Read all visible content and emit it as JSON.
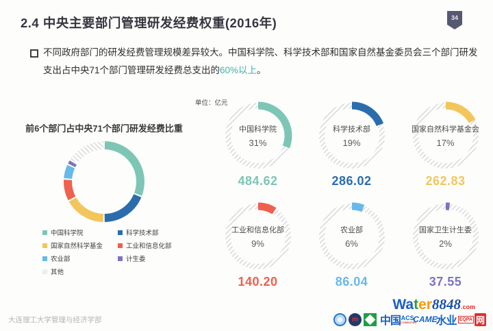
{
  "header": {
    "title": "2.4  中央主要部门管理研发经费权重(2016年)",
    "page_number": "34"
  },
  "intro": {
    "text": "不同政府部门的研发经费管理规模差异较大。中国科学院、科学技术部和国家自然基金委员会三个部门研发支出占中央71个部门管理研发经费总支出的",
    "highlight": "60%以上",
    "tail": "。"
  },
  "theme": {
    "highlight_color": "#3fb3a9",
    "badge_color": "#565871"
  },
  "chart_data": [
    {
      "type": "pie",
      "donut": true,
      "title": "前6个部门占中央71个部门研发经费比重",
      "start_angle": "top",
      "direction": "clockwise",
      "categories": [
        "中国科学院",
        "科学技术部",
        "国家自然科学基金",
        "工业和信息化部",
        "农业部",
        "计生委",
        "其他"
      ],
      "values": [
        31,
        19,
        17,
        9,
        6,
        2,
        16
      ],
      "unit": "%",
      "colors": [
        "#7dc6b6",
        "#2a6dad",
        "#f2c65b",
        "#ef604e",
        "#66b9e8",
        "#7a73c3",
        "hatch"
      ],
      "legend_position": "bottom"
    },
    {
      "type": "pie",
      "subtype": "donut-gauge-grid",
      "unit_label": "单位：亿元",
      "items": [
        {
          "name": "中国科学院",
          "percent": 31,
          "percent_label": "31%",
          "value": "484.62",
          "color": "#7dc6b6"
        },
        {
          "name": "科学技术部",
          "percent": 19,
          "percent_label": "19%",
          "value": "286.02",
          "color": "#2a6dad"
        },
        {
          "name": "国家自然科学基金会",
          "percent": 17,
          "percent_label": "17%",
          "value": "262.83",
          "color": "#f2c65b"
        },
        {
          "name": "工业和信息化部",
          "percent": 9,
          "percent_label": "9%",
          "value": "140.20",
          "color": "#ef604e"
        },
        {
          "name": "农业部",
          "percent": 6,
          "percent_label": "6%",
          "value": "86.04",
          "color": "#66b9e8"
        },
        {
          "name": "国家卫生计生委",
          "percent": 2,
          "percent_label": "2%",
          "value": "37.55",
          "color": "#7a73c4"
        }
      ]
    }
  ],
  "legend": {
    "items": [
      {
        "label": "中国科学院",
        "color": "#7dc6b6"
      },
      {
        "label": "国家自然科学基金",
        "color": "#f2c65b"
      },
      {
        "label": "农业部",
        "color": "#66b9e8"
      },
      {
        "label": "其他",
        "color": "hatch"
      },
      {
        "label": "科学技术部",
        "color": "#2a6dad"
      },
      {
        "label": "工业和信息化部",
        "color": "#ef604e"
      },
      {
        "label": "计生委",
        "color": "#7a73c3"
      }
    ]
  },
  "footer": {
    "text": "大连理工大学管理与经济学部"
  },
  "watermark": {
    "brand_letters": [
      {
        "ch": "W",
        "color": "#1a5fc8"
      },
      {
        "ch": "a",
        "color": "#1a5fc8"
      },
      {
        "ch": "t",
        "color": "#31a03a"
      },
      {
        "ch": "e",
        "color": "#f59b00"
      },
      {
        "ch": "r",
        "color": "#f59b00"
      }
    ],
    "brand_suffix": "8848",
    "brand_domain": ".com",
    "cn_part1": "中国",
    "acs": "ACS",
    "accredited": "ACCREDITED",
    "came": "CAME",
    "cn_part2": "水业",
    "eqpa": "EQPA",
    "net": "网"
  }
}
